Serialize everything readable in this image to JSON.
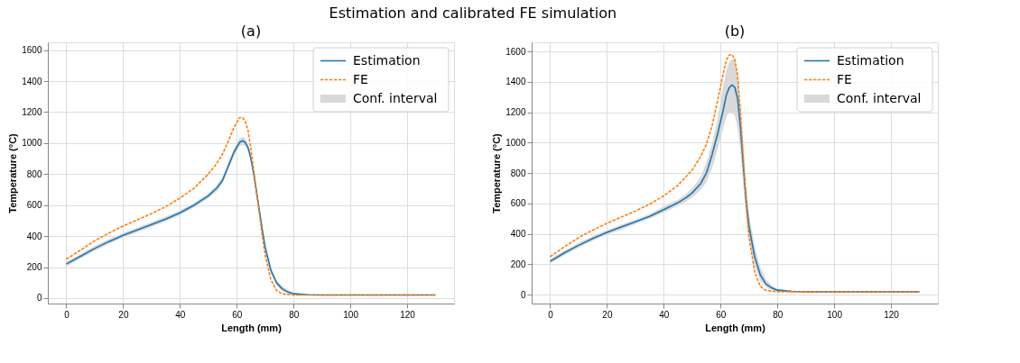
{
  "chart_data": [
    {
      "type": "line",
      "title": "(a)",
      "xlabel": "Length (mm)",
      "ylabel": "Temperature (°C)",
      "annotations": [
        "Estimation and calibrated FE simulation",
        "Conf. interval"
      ],
      "xlim": [
        -6.5,
        136.5
      ],
      "xticks": [
        0,
        20,
        40,
        60,
        80,
        100,
        120
      ],
      "ylim": [
        -35,
        1650
      ],
      "yticks": [
        0,
        200,
        400,
        600,
        800,
        1000,
        1200,
        1400,
        1600
      ],
      "grid": true,
      "legend": "top right",
      "series": [
        {
          "name": "Estimation",
          "color": "#1f77b4",
          "line_style": "solid",
          "x": [
            0,
            5,
            10,
            15,
            20,
            25,
            30,
            35,
            40,
            45,
            50,
            53,
            55,
            57,
            59,
            61,
            62,
            63,
            64,
            65,
            66,
            67,
            68,
            69,
            70,
            72,
            74,
            76,
            78,
            80,
            85,
            90,
            100,
            130
          ],
          "values": [
            220,
            270,
            320,
            365,
            405,
            440,
            475,
            510,
            550,
            600,
            660,
            710,
            760,
            850,
            940,
            1005,
            1015,
            1005,
            970,
            900,
            800,
            680,
            560,
            440,
            330,
            180,
            100,
            60,
            40,
            28,
            22,
            20,
            20,
            20
          ],
          "lower": [
            205,
            255,
            305,
            350,
            390,
            425,
            460,
            495,
            535,
            585,
            645,
            690,
            740,
            825,
            915,
            980,
            990,
            980,
            945,
            875,
            775,
            655,
            535,
            415,
            305,
            160,
            82,
            44,
            28,
            20,
            18,
            18,
            18,
            18
          ],
          "upper": [
            235,
            285,
            335,
            380,
            420,
            455,
            490,
            525,
            565,
            615,
            675,
            730,
            780,
            875,
            965,
            1030,
            1040,
            1030,
            995,
            925,
            825,
            705,
            585,
            465,
            355,
            200,
            118,
            76,
            52,
            36,
            26,
            22,
            22,
            22
          ]
        },
        {
          "name": "FE",
          "color": "#ff7f0e",
          "line_style": "dashed",
          "x": [
            0,
            5,
            10,
            15,
            20,
            25,
            30,
            35,
            40,
            45,
            50,
            53,
            55,
            57,
            59,
            61,
            62,
            63,
            64,
            65,
            66,
            67,
            68,
            69,
            70,
            72,
            74,
            76,
            80,
            130
          ],
          "values": [
            250,
            310,
            370,
            420,
            465,
            505,
            545,
            590,
            645,
            710,
            800,
            870,
            930,
            1010,
            1100,
            1165,
            1165,
            1140,
            1080,
            960,
            820,
            680,
            540,
            400,
            280,
            120,
            50,
            27,
            20,
            20
          ]
        }
      ]
    },
    {
      "type": "line",
      "title": "(b)",
      "xlabel": "Length (mm)",
      "ylabel": "Temperature (°C)",
      "annotations": [
        "Conf. interval"
      ],
      "xlim": [
        -6.5,
        136.5
      ],
      "xticks": [
        0,
        20,
        40,
        60,
        80,
        100,
        120
      ],
      "ylim": [
        -58,
        1660
      ],
      "yticks": [
        0,
        200,
        400,
        600,
        800,
        1000,
        1200,
        1400,
        1600
      ],
      "grid": true,
      "legend": "top right",
      "series": [
        {
          "name": "Estimation",
          "color": "#1f77b4",
          "line_style": "solid",
          "x": [
            0,
            5,
            10,
            15,
            20,
            25,
            30,
            35,
            40,
            45,
            48,
            50,
            53,
            55,
            57,
            59,
            61,
            62,
            63,
            64,
            65,
            66,
            67,
            68,
            69,
            70,
            72,
            74,
            76,
            78,
            80,
            85,
            90,
            130
          ],
          "values": [
            220,
            275,
            325,
            370,
            410,
            445,
            480,
            515,
            560,
            605,
            640,
            670,
            730,
            800,
            920,
            1060,
            1220,
            1310,
            1360,
            1380,
            1365,
            1290,
            1100,
            850,
            620,
            450,
            250,
            130,
            70,
            45,
            30,
            22,
            20,
            20
          ],
          "lower": [
            205,
            260,
            310,
            355,
            395,
            430,
            465,
            500,
            540,
            585,
            615,
            640,
            690,
            740,
            830,
            960,
            1100,
            1170,
            1200,
            1200,
            1180,
            1100,
            950,
            720,
            520,
            370,
            190,
            90,
            50,
            30,
            22,
            18,
            18,
            18
          ],
          "upper": [
            235,
            290,
            340,
            385,
            425,
            460,
            495,
            530,
            580,
            625,
            665,
            700,
            775,
            870,
            990,
            1160,
            1380,
            1470,
            1530,
            1550,
            1550,
            1450,
            1250,
            1000,
            720,
            530,
            320,
            180,
            100,
            60,
            40,
            28,
            22,
            22
          ]
        },
        {
          "name": "FE",
          "color": "#ff7f0e",
          "line_style": "dashed",
          "x": [
            0,
            5,
            10,
            15,
            20,
            25,
            30,
            35,
            40,
            45,
            50,
            53,
            55,
            57,
            59,
            61,
            62,
            63,
            64,
            65,
            66,
            67,
            68,
            69,
            70,
            72,
            74,
            76,
            80,
            130
          ],
          "values": [
            250,
            315,
            375,
            425,
            470,
            510,
            550,
            595,
            650,
            720,
            820,
            910,
            990,
            1110,
            1280,
            1460,
            1540,
            1575,
            1580,
            1550,
            1440,
            1200,
            900,
            600,
            380,
            150,
            55,
            28,
            20,
            20
          ]
        }
      ]
    }
  ]
}
